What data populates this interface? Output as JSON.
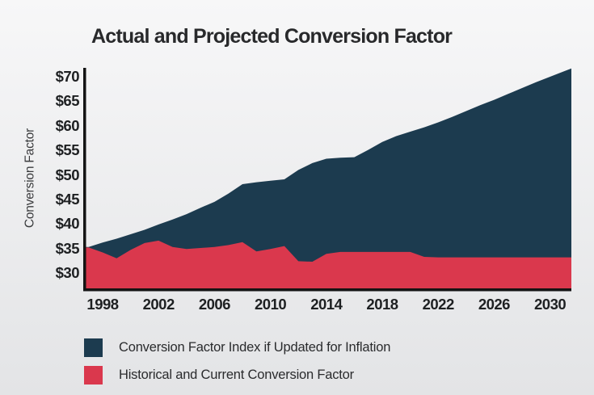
{
  "title": "Actual and Projected Conversion Factor",
  "colors": {
    "inflation_area": "#1c3b4f",
    "historical_area": "#da384d",
    "axis": "#141414",
    "background_top": "#f7f7f8",
    "background_bottom": "#e3e4e6"
  },
  "chart_data": {
    "type": "area",
    "title": "Actual and Projected Conversion Factor",
    "xlabel": "",
    "ylabel": "Conversion Factor",
    "grid": false,
    "legend_position": "bottom-left",
    "xlim": [
      1997,
      2031.5
    ],
    "ylim": [
      26.9,
      71.7
    ],
    "x_ticks": [
      1998,
      2002,
      2006,
      2010,
      2014,
      2018,
      2022,
      2026,
      2030
    ],
    "y_tick_values": [
      30,
      35,
      40,
      45,
      50,
      55,
      60,
      65,
      70
    ],
    "y_tick_labels": [
      "$30",
      "$35",
      "$40",
      "$45",
      "$50",
      "$55",
      "$60",
      "$65",
      "$70"
    ],
    "x": [
      1997,
      1998,
      1999,
      2000,
      2001,
      2002,
      2003,
      2004,
      2005,
      2006,
      2007,
      2008,
      2009,
      2010,
      2011,
      2012,
      2013,
      2014,
      2015,
      2016,
      2017,
      2018,
      2019,
      2020,
      2021,
      2022,
      2023,
      2024,
      2025,
      2026,
      2027,
      2028,
      2029,
      2030,
      2031
    ],
    "series": [
      {
        "name": "Conversion Factor Index if Updated for Inflation",
        "color": "#1c3b4f",
        "values": [
          35.3,
          36.2,
          37.0,
          37.9,
          38.8,
          39.9,
          40.9,
          42.0,
          43.3,
          44.5,
          46.2,
          48.1,
          48.5,
          48.8,
          49.1,
          51.0,
          52.4,
          53.3,
          53.5,
          53.6,
          55.1,
          56.7,
          57.9,
          58.8,
          59.7,
          60.7,
          61.8,
          63.0,
          64.2,
          65.3,
          66.5,
          67.7,
          68.9,
          70.0,
          71.1
        ]
      },
      {
        "name": "Historical and Current Conversion Factor",
        "color": "#da384d",
        "values": [
          35.2,
          34.2,
          33.0,
          34.7,
          36.1,
          36.6,
          35.3,
          34.9,
          35.1,
          35.3,
          35.7,
          36.3,
          34.4,
          34.9,
          35.5,
          32.4,
          32.3,
          33.9,
          34.3,
          34.3,
          34.3,
          34.3,
          34.3,
          34.3,
          33.3,
          33.2,
          33.2,
          33.2,
          33.2,
          33.2,
          33.2,
          33.2,
          33.2,
          33.2,
          33.2
        ]
      }
    ]
  }
}
